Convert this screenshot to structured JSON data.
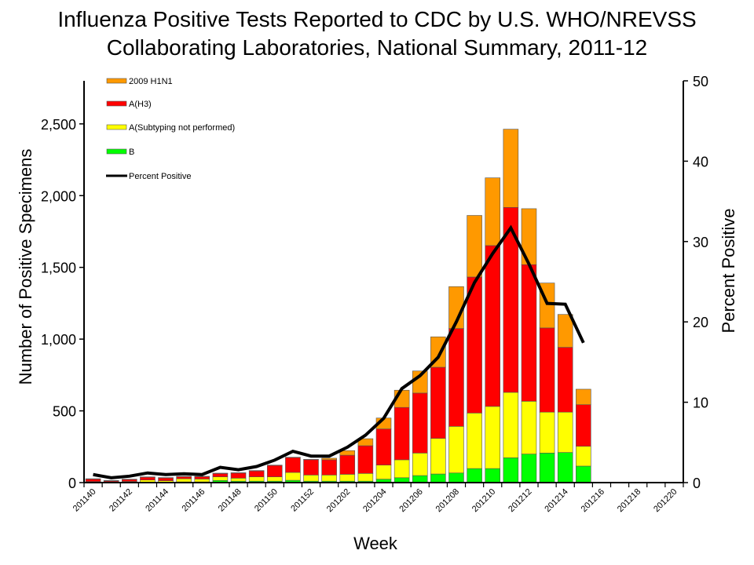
{
  "chart_data": {
    "type": "bar",
    "stacked": true,
    "title_lines": [
      "Influenza Positive Tests Reported to CDC by U.S. WHO/NREVSS",
      "Collaborating Laboratories, National Summary, 2011-12"
    ],
    "xlabel": "Week",
    "ylabel": "Number of Positive Specimens",
    "y2label": "Percent Positive",
    "ylim": [
      0,
      2800
    ],
    "y2lim": [
      0,
      50
    ],
    "yticks": [
      0,
      500,
      1000,
      1500,
      2000,
      2500
    ],
    "ytick_labels": [
      "0",
      "500",
      "1,000",
      "1,500",
      "2,000",
      "2,500"
    ],
    "y2ticks": [
      0,
      10,
      20,
      30,
      40,
      50
    ],
    "y2tick_labels": [
      "0",
      "10",
      "20",
      "30",
      "40",
      "50"
    ],
    "legend_position": "top-left",
    "grid": false,
    "categories": [
      "201140",
      "201141",
      "201142",
      "201143",
      "201144",
      "201145",
      "201146",
      "201147",
      "201148",
      "201149",
      "201150",
      "201151",
      "201152",
      "201201",
      "201202",
      "201203",
      "201204",
      "201205",
      "201206",
      "201207",
      "201208",
      "201209",
      "201210",
      "201211",
      "201212",
      "201213",
      "201214",
      "201215",
      "201216",
      "201217",
      "201218",
      "201219",
      "201220"
    ],
    "xtick_labels": [
      "201140",
      "201142",
      "201144",
      "201146",
      "201148",
      "201150",
      "201152",
      "201202",
      "201204",
      "201206",
      "201208",
      "201210",
      "201212",
      "201214",
      "201216",
      "201218",
      "201220"
    ],
    "series": [
      {
        "name": "B",
        "color": "#00FF00",
        "values": [
          2,
          2,
          2,
          4,
          3,
          5,
          5,
          15,
          10,
          10,
          10,
          16,
          10,
          10,
          10,
          10,
          24,
          34,
          49,
          60,
          67,
          98,
          98,
          173,
          199,
          206,
          210,
          115,
          null,
          null,
          null,
          null,
          null
        ]
      },
      {
        "name": "A(Subtyping not performed)",
        "color": "#FFFF00",
        "values": [
          5,
          4,
          6,
          14,
          10,
          22,
          20,
          25,
          21,
          30,
          30,
          55,
          43,
          43,
          48,
          54,
          98,
          125,
          157,
          248,
          325,
          387,
          433,
          456,
          368,
          285,
          281,
          138,
          null,
          null,
          null,
          null,
          null
        ]
      },
      {
        "name": "A(H3)",
        "color": "#FF0000",
        "values": [
          18,
          8,
          14,
          20,
          20,
          15,
          17,
          24,
          36,
          42,
          80,
          104,
          107,
          106,
          133,
          193,
          252,
          365,
          418,
          496,
          682,
          948,
          1121,
          1289,
          952,
          587,
          452,
          290,
          null,
          null,
          null,
          null,
          null
        ]
      },
      {
        "name": "2009 H1N1",
        "color": "#FF9900",
        "values": [
          2,
          1,
          2,
          2,
          2,
          2,
          2,
          2,
          2,
          2,
          2,
          2,
          2,
          11,
          32,
          49,
          76,
          120,
          154,
          212,
          292,
          429,
          472,
          545,
          390,
          313,
          229,
          108,
          null,
          null,
          null,
          null,
          null
        ]
      }
    ],
    "line_series": {
      "name": "Percent Positive",
      "color": "#000000",
      "axis": "right",
      "values": [
        1.0,
        0.6,
        0.8,
        1.2,
        1.0,
        1.1,
        1.0,
        1.9,
        1.6,
        2.0,
        2.8,
        3.9,
        3.3,
        3.3,
        4.4,
        5.9,
        8.0,
        11.7,
        13.3,
        15.6,
        20.0,
        24.9,
        28.5,
        31.7,
        27.2,
        22.3,
        22.2,
        17.4,
        null,
        null,
        null,
        null,
        null
      ]
    },
    "legend_order": [
      "2009 H1N1",
      "A(H3)",
      "A(Subtyping not performed)",
      "B",
      "Percent Positive"
    ]
  }
}
